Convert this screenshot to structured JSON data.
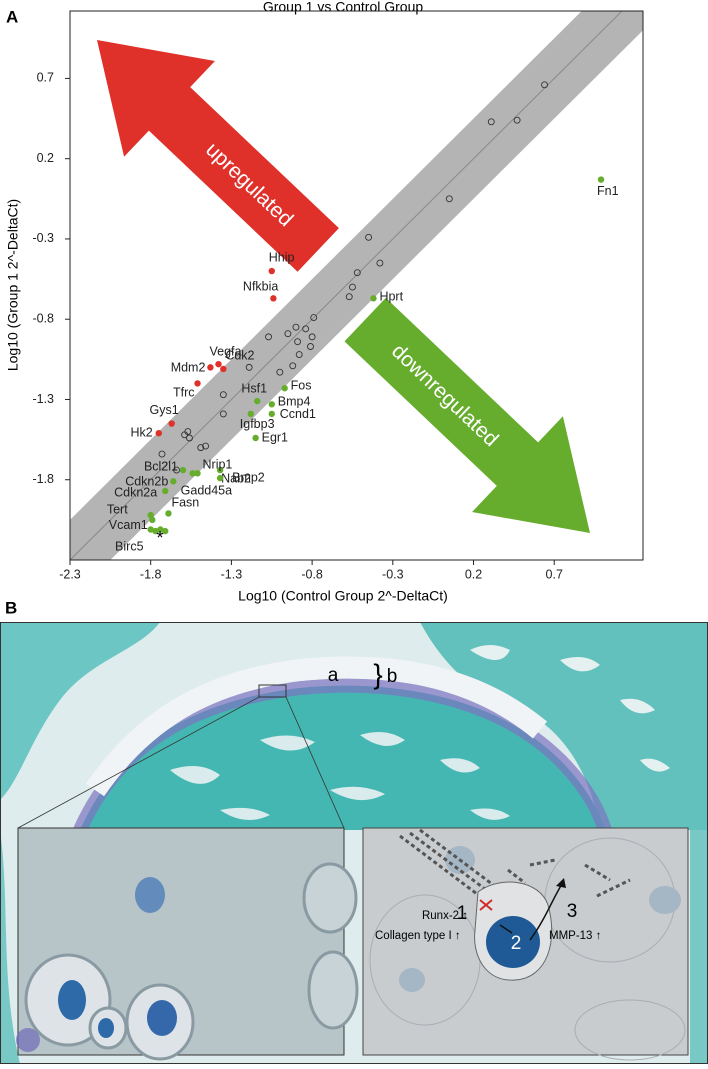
{
  "panel_a_label": "A",
  "chart_data": {
    "type": "scatter",
    "title": "Group 1 vs Control Group",
    "xlabel": "Log10 (Control Group 2^-DeltaCt)",
    "ylabel": "Log10 (Group 1 2^-DeltaCt)",
    "xlim": [
      -2.3,
      1.25
    ],
    "ylim": [
      -2.3,
      1.12
    ],
    "xticks": [
      -2.3,
      -1.8,
      -1.3,
      -0.8,
      -0.3,
      0.2,
      0.7
    ],
    "yticks": [
      -1.8,
      -1.3,
      -0.8,
      -0.3,
      0.2,
      0.7
    ],
    "band": 0.25,
    "band_color": "#b4b4b4",
    "grid": false,
    "series": [
      {
        "color": "#333333",
        "hollow": true,
        "x": [
          0.64,
          0.31,
          0.47,
          0.05,
          -0.45,
          -0.52,
          -0.38,
          -0.55,
          -0.57,
          -0.79,
          -0.84,
          -0.9,
          -0.8,
          -0.89,
          -0.81,
          -1.07,
          -0.95,
          -0.88,
          -0.92,
          -1.0,
          -1.19,
          -1.35,
          -1.35,
          -1.57,
          -1.56,
          -1.46,
          -1.49,
          -1.59,
          -1.64,
          -1.73
        ],
        "values": [
          0.66,
          0.43,
          0.44,
          -0.05,
          -0.29,
          -0.51,
          -0.45,
          -0.6,
          -0.66,
          -0.79,
          -0.86,
          -0.85,
          -0.91,
          -0.94,
          -0.97,
          -0.91,
          -0.89,
          -1.02,
          -1.09,
          -1.13,
          -1.1,
          -1.27,
          -1.39,
          -1.5,
          -1.54,
          -1.59,
          -1.6,
          -1.52,
          -1.74,
          -1.64
        ]
      },
      {
        "name": "upregulated",
        "color": "#e0302a",
        "x": [
          -1.05,
          -1.04,
          -1.38,
          -1.43,
          -1.35,
          -1.51,
          -1.67,
          -1.75
        ],
        "values": [
          -0.5,
          -0.67,
          -1.08,
          -1.1,
          -1.11,
          -1.2,
          -1.45,
          -1.51
        ],
        "labels": [
          "Hhip",
          "Nfkbia",
          "Vegfa",
          "Mdm2",
          "Cdk2",
          "Tfrc",
          "Gys1",
          "Hk2"
        ]
      },
      {
        "name": "downregulated",
        "color": "#66ad2e",
        "x": [
          0.99,
          -0.42,
          -0.97,
          -1.14,
          -1.05,
          -1.05,
          -1.18,
          -1.15,
          -1.37,
          -1.51,
          -1.37,
          -1.54,
          -1.6,
          -1.66,
          -1.71,
          -1.69,
          -1.8,
          -1.8,
          -1.77,
          -1.79,
          -1.74,
          -1.71
        ],
        "values": [
          0.07,
          -0.67,
          -1.23,
          -1.31,
          -1.33,
          -1.39,
          -1.39,
          -1.54,
          -1.74,
          -1.76,
          -1.79,
          -1.76,
          -1.74,
          -1.81,
          -1.87,
          -2.01,
          -2.02,
          -2.11,
          -2.12,
          -2.05,
          -2.11,
          -2.12
        ],
        "labels": [
          "Fn1",
          "Hprt",
          "Fos",
          "Hsf1",
          "Bmp4",
          "Ccnd1",
          "Igfbp3",
          "Egr1",
          "Nab2",
          "Nrip1",
          "Bmp2",
          "Gadd45a",
          "Bcl2l1",
          "Cdkn2b",
          "Cdkn2a",
          "Fasn",
          "Tert",
          "Vcam1",
          "Birc5",
          null,
          null,
          null
        ]
      }
    ]
  },
  "panel_b": {
    "label": "B",
    "zone_a": "a",
    "zone_b": "b",
    "steps": [
      "1",
      "2",
      "3"
    ],
    "markers": [
      "Runx-2 ↑",
      "Collagen type I ↑",
      "MMP-13 ↑"
    ]
  }
}
